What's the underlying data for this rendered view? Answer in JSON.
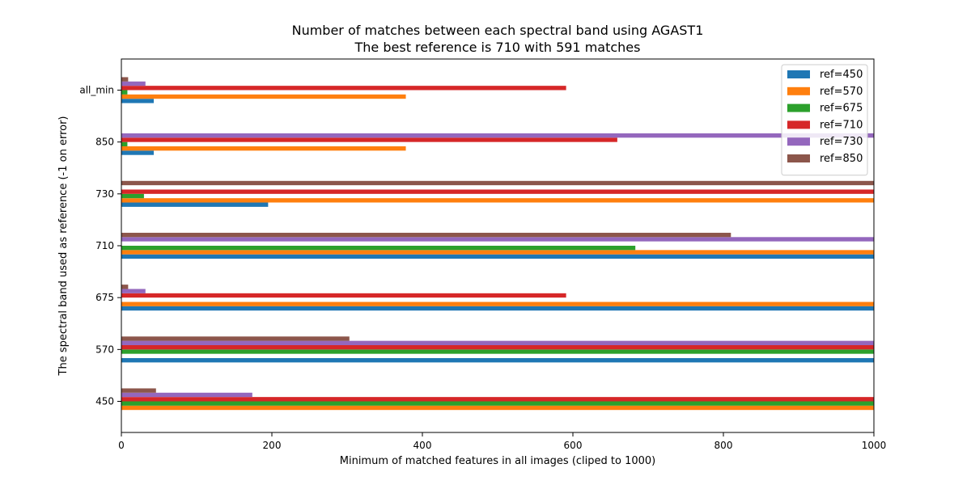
{
  "chart_data": {
    "type": "bar",
    "orientation": "horizontal",
    "title": "Number of matches between each spectral band using AGAST1",
    "subtitle": "The best reference is 710 with 591 matches",
    "xlabel": "Minimum of matched features in all images (cliped to 1000)",
    "ylabel": "The spectral band used as reference (-1 on error)",
    "xlim": [
      0,
      1000
    ],
    "xticks": [
      0,
      200,
      400,
      600,
      800,
      1000
    ],
    "categories": [
      "450",
      "570",
      "675",
      "710",
      "730",
      "850",
      "all_min"
    ],
    "series": [
      {
        "name": "ref=450",
        "color": "#1f77b4",
        "values": [
          0,
          1000,
          1000,
          1000,
          195,
          43,
          43
        ]
      },
      {
        "name": "ref=570",
        "color": "#ff7f0e",
        "values": [
          1000,
          0,
          1000,
          1000,
          1000,
          378,
          378
        ]
      },
      {
        "name": "ref=675",
        "color": "#2ca02c",
        "values": [
          1000,
          1000,
          0,
          683,
          30,
          8,
          8
        ]
      },
      {
        "name": "ref=710",
        "color": "#d62728",
        "values": [
          1000,
          1000,
          591,
          0,
          1000,
          659,
          591
        ]
      },
      {
        "name": "ref=730",
        "color": "#9467bd",
        "values": [
          174,
          1000,
          32,
          1000,
          0,
          1000,
          32
        ]
      },
      {
        "name": "ref=850",
        "color": "#8c564b",
        "values": [
          46,
          303,
          9,
          810,
          1000,
          0,
          9
        ]
      }
    ],
    "legend_position": "top-right",
    "grid": false
  }
}
